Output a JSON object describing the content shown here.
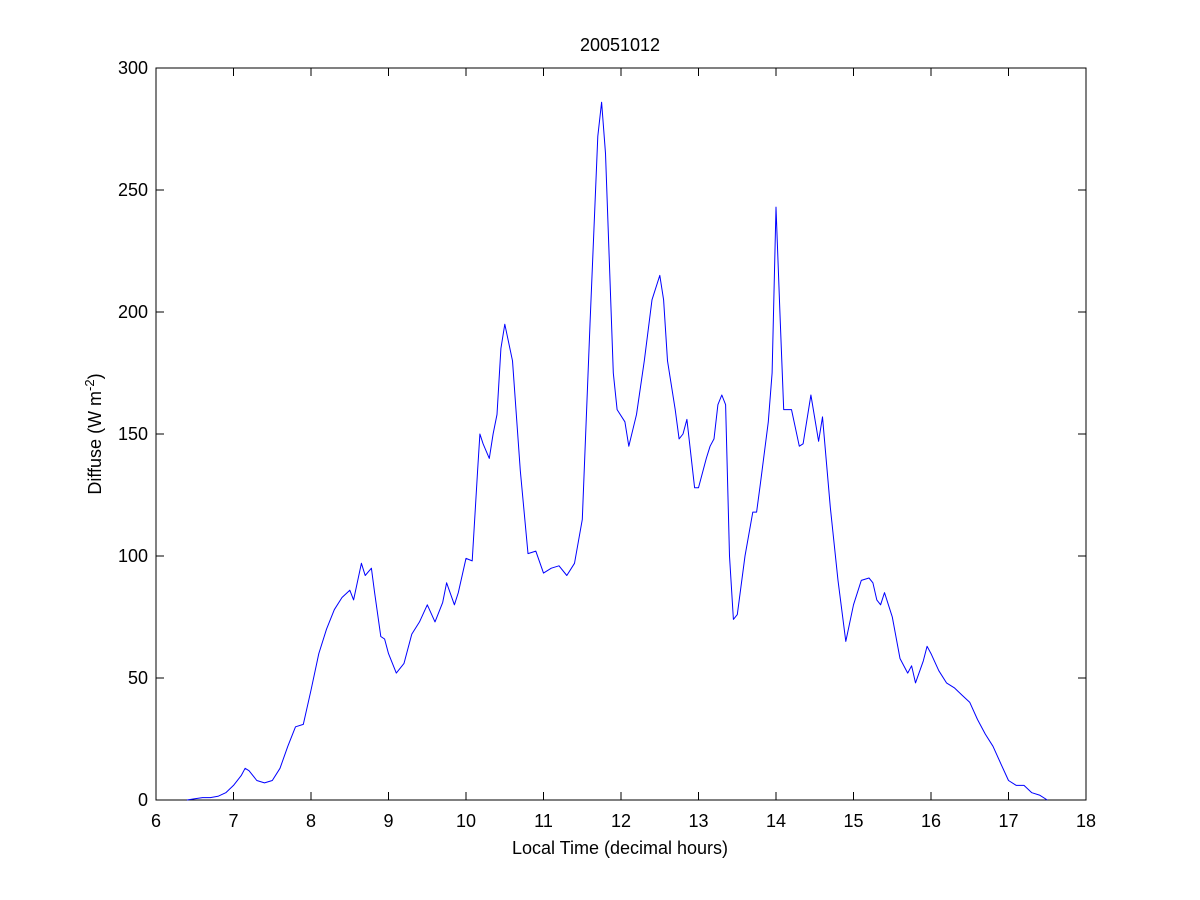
{
  "chart_data": {
    "type": "line",
    "title": "20051012",
    "xlabel": "Local Time (decimal hours)",
    "ylabel": {
      "text": "Diffuse (W m",
      "superscript": "-2",
      "suffix": ")"
    },
    "xlim": [
      6,
      18
    ],
    "ylim": [
      0,
      300
    ],
    "xticks": [
      6,
      7,
      8,
      9,
      10,
      11,
      12,
      13,
      14,
      15,
      16,
      17,
      18
    ],
    "yticks": [
      0,
      50,
      100,
      150,
      200,
      250,
      300
    ],
    "grid": false,
    "line_color": "#0000ff",
    "series": [
      {
        "points": [
          [
            6.4,
            0
          ],
          [
            6.5,
            0.5
          ],
          [
            6.6,
            1
          ],
          [
            6.7,
            1
          ],
          [
            6.8,
            1.5
          ],
          [
            6.9,
            3
          ],
          [
            7.0,
            6
          ],
          [
            7.1,
            10
          ],
          [
            7.15,
            13
          ],
          [
            7.2,
            12
          ],
          [
            7.3,
            8
          ],
          [
            7.4,
            7
          ],
          [
            7.5,
            8
          ],
          [
            7.6,
            13
          ],
          [
            7.7,
            22
          ],
          [
            7.8,
            30
          ],
          [
            7.9,
            31
          ],
          [
            8.0,
            45
          ],
          [
            8.1,
            60
          ],
          [
            8.2,
            70
          ],
          [
            8.3,
            78
          ],
          [
            8.4,
            83
          ],
          [
            8.5,
            86
          ],
          [
            8.55,
            82
          ],
          [
            8.65,
            97
          ],
          [
            8.7,
            92
          ],
          [
            8.78,
            95
          ],
          [
            8.82,
            85
          ],
          [
            8.9,
            67
          ],
          [
            8.95,
            66
          ],
          [
            9.0,
            60
          ],
          [
            9.1,
            52
          ],
          [
            9.2,
            56
          ],
          [
            9.3,
            68
          ],
          [
            9.4,
            73
          ],
          [
            9.5,
            80
          ],
          [
            9.6,
            73
          ],
          [
            9.7,
            81
          ],
          [
            9.75,
            89
          ],
          [
            9.85,
            80
          ],
          [
            9.9,
            85
          ],
          [
            10.0,
            99
          ],
          [
            10.08,
            98
          ],
          [
            10.15,
            135
          ],
          [
            10.18,
            150
          ],
          [
            10.22,
            146
          ],
          [
            10.3,
            140
          ],
          [
            10.35,
            150
          ],
          [
            10.4,
            158
          ],
          [
            10.45,
            185
          ],
          [
            10.5,
            195
          ],
          [
            10.6,
            180
          ],
          [
            10.7,
            135
          ],
          [
            10.8,
            101
          ],
          [
            10.9,
            102
          ],
          [
            11.0,
            93
          ],
          [
            11.1,
            95
          ],
          [
            11.2,
            96
          ],
          [
            11.3,
            92
          ],
          [
            11.4,
            97
          ],
          [
            11.5,
            115
          ],
          [
            11.6,
            195
          ],
          [
            11.7,
            272
          ],
          [
            11.75,
            286
          ],
          [
            11.8,
            265
          ],
          [
            11.9,
            175
          ],
          [
            11.95,
            160
          ],
          [
            12.05,
            155
          ],
          [
            12.1,
            145
          ],
          [
            12.2,
            158
          ],
          [
            12.3,
            180
          ],
          [
            12.4,
            205
          ],
          [
            12.5,
            215
          ],
          [
            12.55,
            205
          ],
          [
            12.6,
            180
          ],
          [
            12.7,
            160
          ],
          [
            12.75,
            148
          ],
          [
            12.8,
            150
          ],
          [
            12.85,
            156
          ],
          [
            12.95,
            128
          ],
          [
            13.0,
            128
          ],
          [
            13.1,
            140
          ],
          [
            13.15,
            145
          ],
          [
            13.2,
            148
          ],
          [
            13.25,
            162
          ],
          [
            13.3,
            166
          ],
          [
            13.35,
            162
          ],
          [
            13.4,
            100
          ],
          [
            13.45,
            74
          ],
          [
            13.5,
            76
          ],
          [
            13.6,
            100
          ],
          [
            13.7,
            118
          ],
          [
            13.75,
            118
          ],
          [
            13.8,
            130
          ],
          [
            13.9,
            155
          ],
          [
            13.95,
            175
          ],
          [
            14.0,
            243
          ],
          [
            14.05,
            200
          ],
          [
            14.1,
            160
          ],
          [
            14.2,
            160
          ],
          [
            14.3,
            145
          ],
          [
            14.35,
            146
          ],
          [
            14.45,
            166
          ],
          [
            14.55,
            147
          ],
          [
            14.6,
            157
          ],
          [
            14.7,
            120
          ],
          [
            14.8,
            90
          ],
          [
            14.9,
            65
          ],
          [
            15.0,
            80
          ],
          [
            15.1,
            90
          ],
          [
            15.2,
            91
          ],
          [
            15.25,
            89
          ],
          [
            15.3,
            82
          ],
          [
            15.35,
            80
          ],
          [
            15.4,
            85
          ],
          [
            15.5,
            75
          ],
          [
            15.6,
            58
          ],
          [
            15.7,
            52
          ],
          [
            15.75,
            55
          ],
          [
            15.8,
            48
          ],
          [
            15.9,
            57
          ],
          [
            15.95,
            63
          ],
          [
            16.0,
            60
          ],
          [
            16.1,
            53
          ],
          [
            16.2,
            48
          ],
          [
            16.3,
            46
          ],
          [
            16.4,
            43
          ],
          [
            16.5,
            40
          ],
          [
            16.6,
            33
          ],
          [
            16.7,
            27
          ],
          [
            16.8,
            22
          ],
          [
            16.9,
            15
          ],
          [
            17.0,
            8
          ],
          [
            17.1,
            6
          ],
          [
            17.2,
            6
          ],
          [
            17.3,
            3
          ],
          [
            17.4,
            2
          ],
          [
            17.5,
            0
          ]
        ]
      }
    ]
  }
}
